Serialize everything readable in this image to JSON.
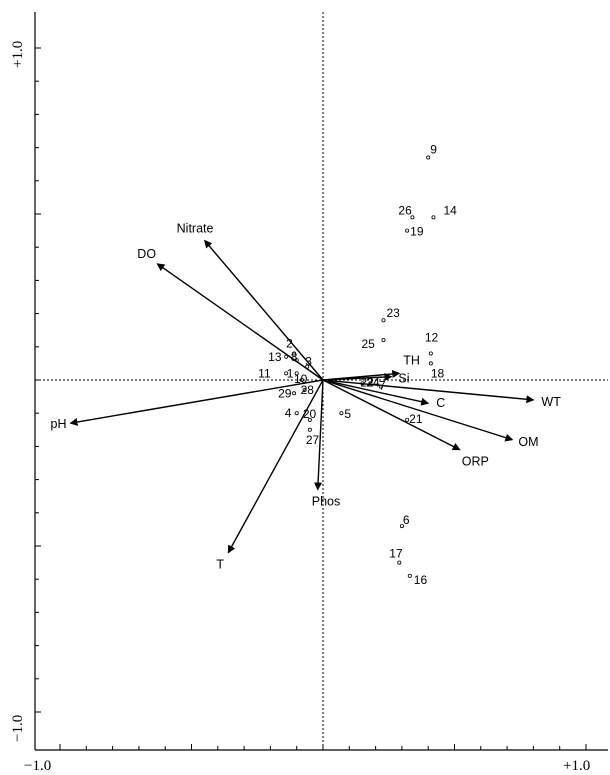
{
  "chart_data": {
    "type": "scatter",
    "subtype": "ordination-biplot",
    "title": "",
    "xlabel": "",
    "ylabel": "",
    "xlim": [
      -1.0,
      1.0
    ],
    "ylim": [
      -1.0,
      1.0
    ],
    "grid": false,
    "legend": "none",
    "reference_lines": {
      "x": 0,
      "y": 0,
      "style": "dotted"
    },
    "tick_labels": {
      "x": [
        {
          "value": -1.0,
          "label": "−1.0"
        },
        {
          "value": 1.0,
          "label": "+1.0"
        }
      ],
      "y": [
        {
          "value": -1.0,
          "label": "−1.0"
        },
        {
          "value": 1.0,
          "label": "+1.0"
        }
      ]
    },
    "arrows": [
      {
        "name": "Nitrate",
        "x": -0.45,
        "y": 0.42
      },
      {
        "name": "DO",
        "x": -0.63,
        "y": 0.35
      },
      {
        "name": "pH",
        "x": -0.96,
        "y": -0.13
      },
      {
        "name": "T",
        "x": -0.36,
        "y": -0.52
      },
      {
        "name": "Phos",
        "x": -0.02,
        "y": -0.33
      },
      {
        "name": "TH",
        "x": 0.29,
        "y": 0.02
      },
      {
        "name": "Si",
        "x": 0.26,
        "y": 0.01
      },
      {
        "name": "C",
        "x": 0.4,
        "y": -0.07
      },
      {
        "name": "WT",
        "x": 0.8,
        "y": -0.06
      },
      {
        "name": "OM",
        "x": 0.72,
        "y": -0.18
      },
      {
        "name": "ORP",
        "x": 0.52,
        "y": -0.21
      }
    ],
    "points": [
      {
        "label": "9",
        "x": 0.4,
        "y": 0.67
      },
      {
        "label": "26",
        "x": 0.34,
        "y": 0.49
      },
      {
        "label": "14",
        "x": 0.42,
        "y": 0.49
      },
      {
        "label": "19",
        "x": 0.32,
        "y": 0.45
      },
      {
        "label": "23",
        "x": 0.23,
        "y": 0.18
      },
      {
        "label": "25",
        "x": 0.23,
        "y": 0.12
      },
      {
        "label": "12",
        "x": 0.41,
        "y": 0.08
      },
      {
        "label": "18",
        "x": 0.41,
        "y": 0.05
      },
      {
        "label": "2",
        "x": -0.11,
        "y": 0.08
      },
      {
        "label": "13",
        "x": -0.14,
        "y": 0.07
      },
      {
        "label": "8",
        "x": -0.1,
        "y": 0.06
      },
      {
        "label": "3",
        "x": -0.06,
        "y": 0.04
      },
      {
        "label": "11",
        "x": -0.14,
        "y": 0.02
      },
      {
        "label": "1",
        "x": -0.1,
        "y": 0.02
      },
      {
        "label": "10",
        "x": -0.08,
        "y": 0.0
      },
      {
        "label": "29",
        "x": -0.11,
        "y": -0.04
      },
      {
        "label": "28",
        "x": -0.07,
        "y": -0.03
      },
      {
        "label": "22",
        "x": 0.15,
        "y": -0.01
      },
      {
        "label": "24",
        "x": 0.18,
        "y": -0.01
      },
      {
        "label": "7",
        "x": 0.22,
        "y": -0.02
      },
      {
        "label": "4",
        "x": -0.1,
        "y": -0.1
      },
      {
        "label": "20",
        "x": -0.05,
        "y": -0.12
      },
      {
        "label": "27",
        "x": -0.05,
        "y": -0.15
      },
      {
        "label": "5",
        "x": 0.07,
        "y": -0.1
      },
      {
        "label": "21",
        "x": 0.32,
        "y": -0.12
      },
      {
        "label": "6",
        "x": 0.3,
        "y": -0.44
      },
      {
        "label": "17",
        "x": 0.29,
        "y": -0.55
      },
      {
        "label": "16",
        "x": 0.33,
        "y": -0.59
      }
    ]
  }
}
